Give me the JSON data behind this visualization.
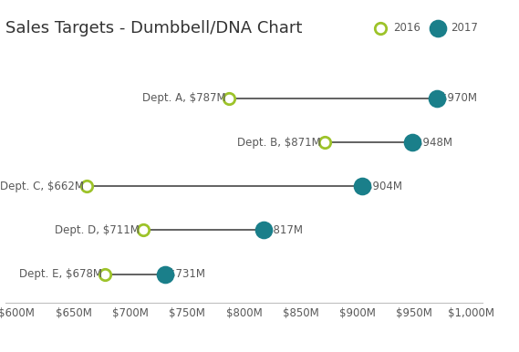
{
  "title": "Sales Targets - Dumbbell/DNA Chart",
  "departments": [
    "Dept. A",
    "Dept. B",
    "Dept. C",
    "Dept. D",
    "Dept. E"
  ],
  "values_2016": [
    787,
    871,
    662,
    711,
    678
  ],
  "values_2017": [
    970,
    948,
    904,
    817,
    731
  ],
  "y_positions": [
    5,
    4,
    3,
    2,
    1
  ],
  "color_2016": "#9dc32a",
  "color_2017": "#1a7f8a",
  "line_color": "#555555",
  "background_color": "#ffffff",
  "xlim": [
    600,
    1000
  ],
  "xticks": [
    600,
    650,
    700,
    750,
    800,
    850,
    900,
    950,
    1000
  ],
  "xtick_labels": [
    "$600M",
    "$650M",
    "$700M",
    "$750M",
    "$800M",
    "$850M",
    "$900M",
    "$950M",
    "$1,000M"
  ],
  "title_fontsize": 13,
  "label_fontsize": 8.5,
  "tick_fontsize": 8.5,
  "marker_size_2016": 80,
  "marker_size_2017": 160,
  "line_width": 1.3,
  "legend_2016": "2016",
  "legend_2017": "2017",
  "text_color": "#595959",
  "spine_color": "#c0c0c0"
}
